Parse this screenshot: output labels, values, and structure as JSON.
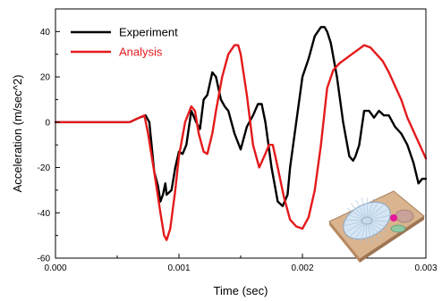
{
  "chart_data": {
    "type": "line",
    "title": "",
    "xlabel": "Time (sec)",
    "ylabel": "Acceleration (m/sec^2)",
    "xlim": [
      0.0,
      0.003
    ],
    "ylim": [
      -60,
      50
    ],
    "x_ticks": [
      0.0,
      0.001,
      0.002,
      0.003
    ],
    "x_tick_labels": [
      "0.000",
      "0.001",
      "0.002",
      "0.003"
    ],
    "y_ticks": [
      -60,
      -40,
      -20,
      0,
      20,
      40
    ],
    "y_tick_labels": [
      "-60",
      "-40",
      "-20",
      "0",
      "20",
      "40"
    ],
    "grid": false,
    "legend_position": "top-left",
    "series": [
      {
        "name": "Experiment",
        "color": "#000000",
        "x": [
          0.0,
          0.0003,
          0.0006,
          0.00068,
          0.00073,
          0.00076,
          0.0008,
          0.00083,
          0.00085,
          0.00087,
          0.00089,
          0.0009,
          0.00094,
          0.00097,
          0.001,
          0.00103,
          0.00106,
          0.0011,
          0.00114,
          0.00117,
          0.0012,
          0.00123,
          0.00127,
          0.0013,
          0.00134,
          0.00137,
          0.0014,
          0.00145,
          0.0015,
          0.00155,
          0.0016,
          0.00164,
          0.00167,
          0.0017,
          0.00175,
          0.0018,
          0.00184,
          0.00188,
          0.0019,
          0.00195,
          0.002,
          0.00205,
          0.0021,
          0.00215,
          0.00218,
          0.0022,
          0.00223,
          0.00228,
          0.00233,
          0.00238,
          0.00241,
          0.00243,
          0.00246,
          0.0025,
          0.00254,
          0.00258,
          0.00262,
          0.00266,
          0.0027,
          0.00275,
          0.0028,
          0.00285,
          0.0029,
          0.00294,
          0.00297,
          0.003
        ],
        "y": [
          0,
          0,
          0,
          2,
          3,
          0,
          -22,
          -28,
          -35,
          -32,
          -27,
          -32,
          -30,
          -20,
          -13,
          -14,
          -10,
          5,
          0,
          -3,
          10,
          12,
          22,
          20,
          10,
          7,
          5,
          -5,
          -12,
          -2,
          3,
          8,
          8,
          0,
          -20,
          -35,
          -37,
          -32,
          -20,
          0,
          20,
          28,
          38,
          42,
          42,
          40,
          35,
          20,
          0,
          -15,
          -17,
          -15,
          -10,
          5,
          5,
          2,
          5,
          3,
          3,
          -2,
          -5,
          -10,
          -18,
          -27,
          -25,
          -25
        ]
      },
      {
        "name": "Analysis",
        "color": "#e41a1c",
        "x": [
          0.0,
          0.0003,
          0.0006,
          0.00068,
          0.00072,
          0.00075,
          0.0008,
          0.00085,
          0.00088,
          0.0009,
          0.00093,
          0.00097,
          0.001,
          0.00105,
          0.0011,
          0.00113,
          0.00116,
          0.0012,
          0.00123,
          0.00127,
          0.0013,
          0.00135,
          0.0014,
          0.00145,
          0.00148,
          0.0015,
          0.00155,
          0.0016,
          0.00165,
          0.0017,
          0.00173,
          0.00176,
          0.0018,
          0.00185,
          0.0019,
          0.00195,
          0.002,
          0.00205,
          0.0021,
          0.00215,
          0.0022,
          0.00225,
          0.0023,
          0.00235,
          0.0024,
          0.00245,
          0.0025,
          0.00255,
          0.0026,
          0.00265,
          0.0027,
          0.00275,
          0.0028,
          0.00285,
          0.0029,
          0.00295,
          0.003
        ],
        "y": [
          0,
          0,
          0,
          2,
          3,
          -5,
          -22,
          -40,
          -50,
          -52,
          -47,
          -30,
          -15,
          0,
          7,
          5,
          -5,
          -13,
          -14,
          -5,
          5,
          20,
          30,
          34,
          34,
          30,
          12,
          -10,
          -20,
          -14,
          -10,
          -10,
          -20,
          -33,
          -43,
          -46,
          -47,
          -42,
          -30,
          -10,
          15,
          23,
          26,
          28,
          30,
          32,
          34,
          33,
          30,
          27,
          22,
          16,
          10,
          2,
          -4,
          -10,
          -16
        ]
      }
    ]
  }
}
